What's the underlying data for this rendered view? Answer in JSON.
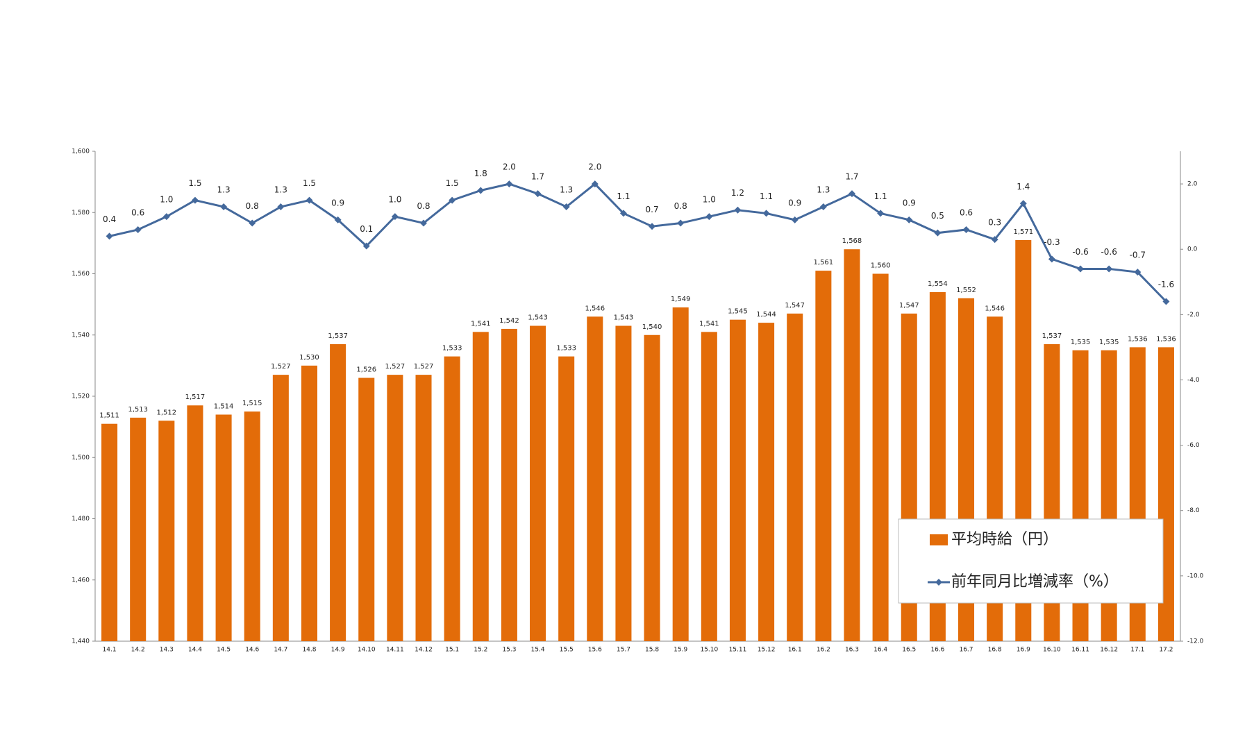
{
  "chart_data": {
    "type": "bar-line",
    "categories": [
      "14.1",
      "14.2",
      "14.3",
      "14.4",
      "14.5",
      "14.6",
      "14.7",
      "14.8",
      "14.9",
      "14.10",
      "14.11",
      "14.12",
      "15.1",
      "15.2",
      "15.3",
      "15.4",
      "15.5",
      "15.6",
      "15.7",
      "15.8",
      "15.9",
      "15.10",
      "15.11",
      "15.12",
      "16.1",
      "16.2",
      "16.3",
      "16.4",
      "16.5",
      "16.6",
      "16.7",
      "16.8",
      "16.9",
      "16.10",
      "16.11",
      "16.12",
      "17.1",
      "17.2"
    ],
    "series": [
      {
        "name": "平均時給（円）",
        "type": "bar",
        "color": "#e36c09",
        "values": [
          1511,
          1513,
          1512,
          1517,
          1514,
          1515,
          1527,
          1530,
          1537,
          1526,
          1527,
          1527,
          1533,
          1541,
          1542,
          1543,
          1533,
          1546,
          1543,
          1540,
          1549,
          1541,
          1545,
          1544,
          1547,
          1561,
          1568,
          1560,
          1547,
          1554,
          1552,
          1546,
          1571,
          1537,
          1535,
          1535,
          1536,
          1536
        ],
        "value_labels": [
          "1,511",
          "1,513",
          "1,512",
          "1,517",
          "1,514",
          "1,515",
          "1,527",
          "1,530",
          "1,537",
          "1,526",
          "1,527",
          "1,527",
          "1,533",
          "1,541",
          "1,542",
          "1,543",
          "1,533",
          "1,546",
          "1,543",
          "1,540",
          "1,549",
          "1,541",
          "1,545",
          "1,544",
          "1,547",
          "1,561",
          "1,568",
          "1,560",
          "1,547",
          "1,554",
          "1,552",
          "1,546",
          "1,571",
          "1,537",
          "1,535",
          "1,535",
          "1,536",
          "1,536"
        ]
      },
      {
        "name": "前年同月比増減率（%）",
        "type": "line",
        "axis": "y2",
        "color": "#44699c",
        "values": [
          0.4,
          0.6,
          1.0,
          1.5,
          1.3,
          0.8,
          1.3,
          1.5,
          0.9,
          0.1,
          1.0,
          0.8,
          1.5,
          1.8,
          2.0,
          1.7,
          1.3,
          2.0,
          1.1,
          0.7,
          0.8,
          1.0,
          1.2,
          1.1,
          0.9,
          1.3,
          1.7,
          1.1,
          0.9,
          0.5,
          0.6,
          0.3,
          1.4,
          -0.3,
          -0.6,
          -0.6,
          -0.7,
          -1.6
        ],
        "value_labels": [
          "0.4",
          "0.6",
          "1.0",
          "1.5",
          "1.3",
          "0.8",
          "1.3",
          "1.5",
          "0.9",
          "0.1",
          "1.0",
          "0.8",
          "1.5",
          "1.8",
          "2.0",
          "1.7",
          "1.3",
          "2.0",
          "1.1",
          "0.7",
          "0.8",
          "1.0",
          "1.2",
          "1.1",
          "0.9",
          "1.3",
          "1.7",
          "1.1",
          "0.9",
          "0.5",
          "0.6",
          "0.3",
          "1.4",
          "-0.3",
          "-0.6",
          "-0.6",
          "-0.7",
          "-1.6"
        ]
      }
    ],
    "ylim": [
      1440,
      1600
    ],
    "yticks": [
      {
        "value": 1440,
        "label": "1,440"
      },
      {
        "value": 1460,
        "label": "1,460"
      },
      {
        "value": 1480,
        "label": "1,480"
      },
      {
        "value": 1500,
        "label": "1,500"
      },
      {
        "value": 1520,
        "label": "1,520"
      },
      {
        "value": 1540,
        "label": "1,540"
      },
      {
        "value": 1560,
        "label": "1,560"
      },
      {
        "value": 1580,
        "label": "1,580"
      },
      {
        "value": 1600,
        "label": "1,600"
      }
    ],
    "y2lim": [
      -12,
      3
    ],
    "y2ticks": [
      {
        "value": -12,
        "label": "-12.0"
      },
      {
        "value": -10,
        "label": "-10.0"
      },
      {
        "value": -8,
        "label": "-8.0"
      },
      {
        "value": -6,
        "label": "-6.0"
      },
      {
        "value": -4,
        "label": "-4.0"
      },
      {
        "value": -2,
        "label": "-2.0"
      },
      {
        "value": 0,
        "label": "0.0"
      },
      {
        "value": 2,
        "label": "2.0"
      }
    ],
    "legend": "bottom-right"
  }
}
